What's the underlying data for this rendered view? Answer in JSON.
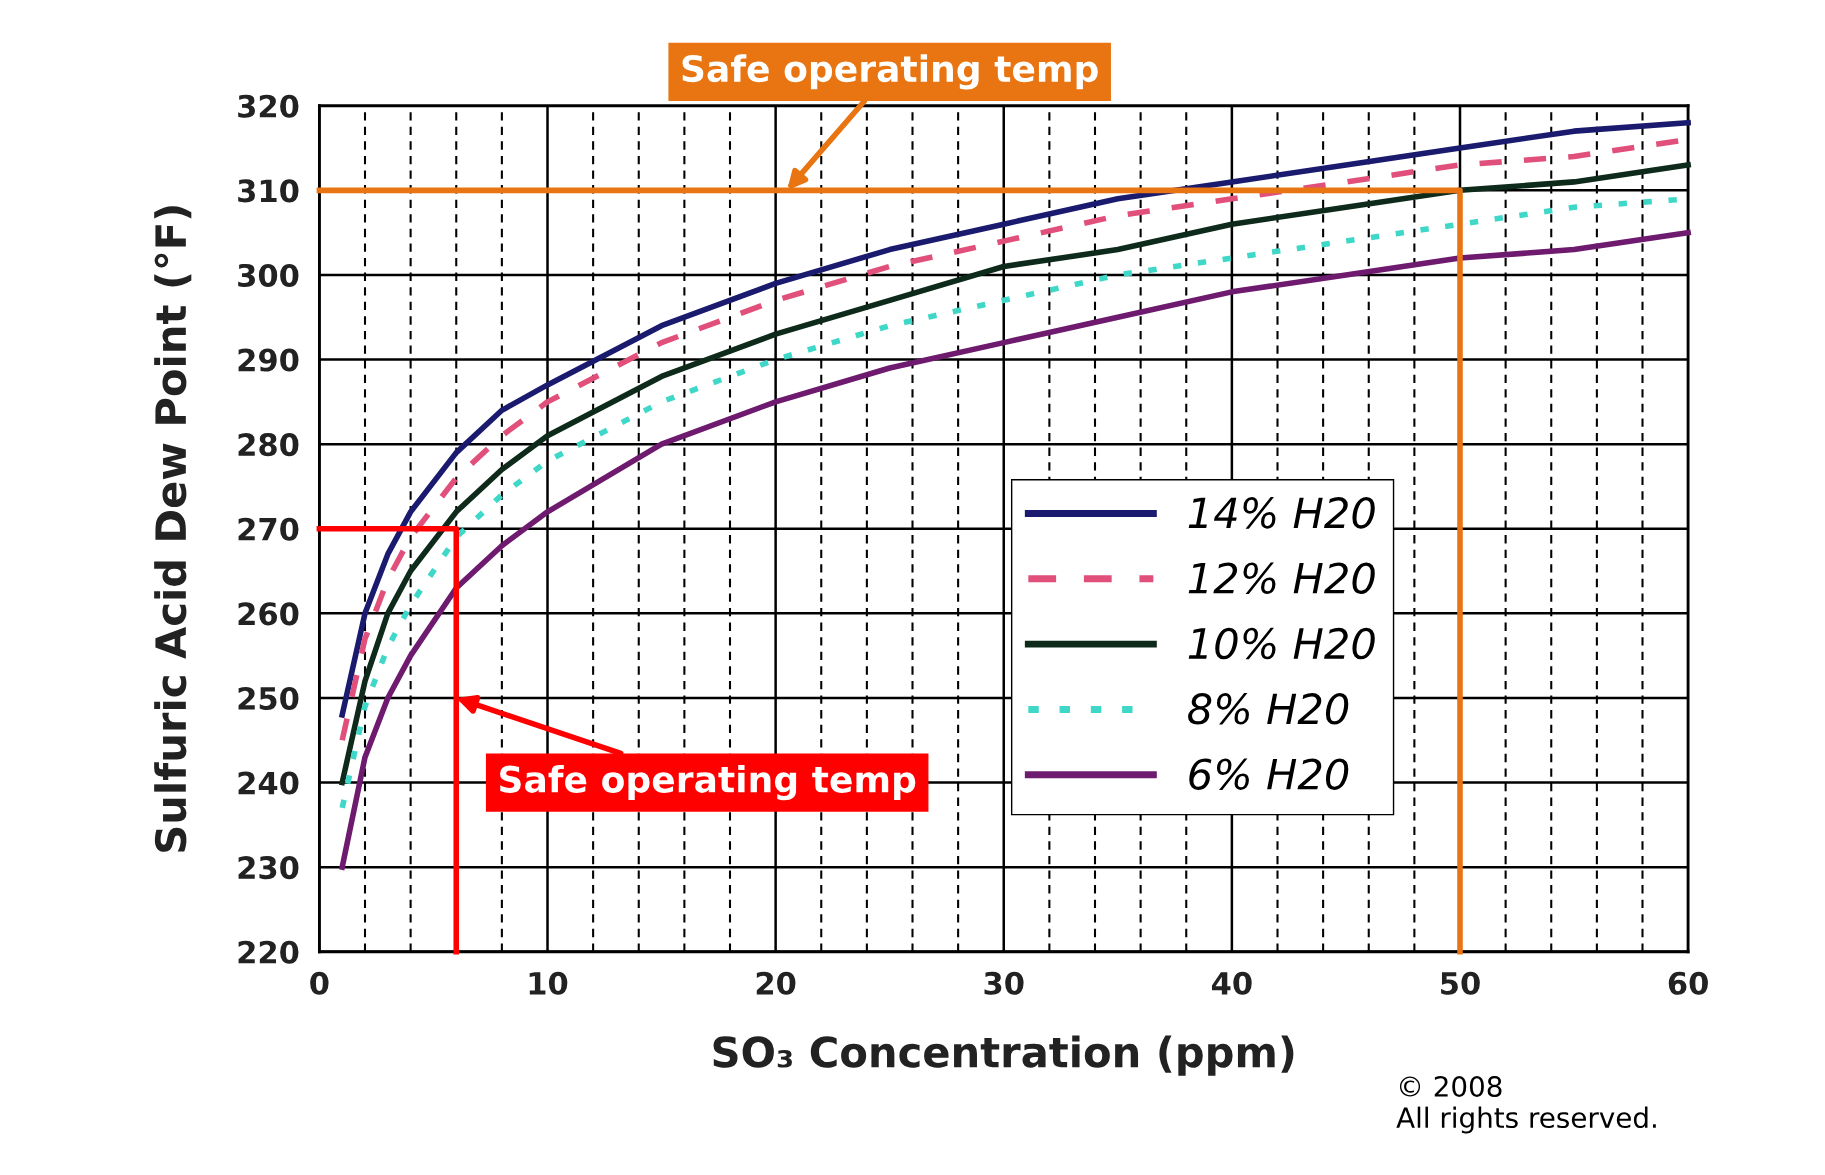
{
  "chart_data": {
    "type": "line",
    "xlabel": "SO₃ Concentration (ppm)",
    "ylabel": "Sulfuric Acid Dew Point (°F)",
    "x": [
      1,
      2,
      3,
      4,
      6,
      8,
      10,
      15,
      20,
      25,
      30,
      35,
      40,
      45,
      50,
      55,
      60
    ],
    "series": [
      {
        "name": "14% H20",
        "color": "#1a1a6e",
        "line_style": "solid",
        "values": [
          248,
          260,
          267,
          272,
          279,
          284,
          287,
          294,
          299,
          303,
          306,
          309,
          311,
          313,
          315,
          317,
          318
        ]
      },
      {
        "name": "12% H20",
        "color": "#e0507a",
        "line_style": "dashed",
        "values": [
          245,
          257,
          264,
          269,
          276,
          281,
          285,
          292,
          297,
          301,
          304,
          307,
          309,
          311,
          313,
          314,
          316
        ]
      },
      {
        "name": "10% H20",
        "color": "#0d2a1a",
        "line_style": "solid",
        "values": [
          240,
          252,
          260,
          265,
          272,
          277,
          281,
          288,
          293,
          297,
          301,
          303,
          306,
          308,
          310,
          311,
          313
        ]
      },
      {
        "name": "8% H20",
        "color": "#3fd8c8",
        "line_style": "dotted",
        "values": [
          237,
          249,
          256,
          261,
          269,
          274,
          278,
          285,
          290,
          294,
          297,
          300,
          302,
          304,
          306,
          308,
          309
        ]
      },
      {
        "name": "6% H20",
        "color": "#6e1a6e",
        "line_style": "solid",
        "values": [
          230,
          243,
          250,
          255,
          263,
          268,
          272,
          280,
          285,
          289,
          292,
          295,
          298,
          300,
          302,
          303,
          305
        ]
      },
      {
        "color": "#ff0000",
        "line_style": "solid",
        "x": [
          0,
          6,
          6
        ],
        "values": [
          270,
          270,
          220
        ]
      },
      {
        "color": "#e87511",
        "line_style": "solid",
        "x": [
          0,
          50,
          50
        ],
        "values": [
          310,
          310,
          220
        ]
      }
    ],
    "xlim": [
      0,
      60
    ],
    "ylim": [
      220,
      320
    ],
    "xticks": [
      0,
      {
        "value": 2,
        "label": null
      },
      {
        "value": 4,
        "label": null
      },
      {
        "value": 6,
        "label": null
      },
      {
        "value": 8,
        "label": null
      },
      10,
      {
        "value": 12,
        "label": null
      },
      {
        "value": 14,
        "label": null
      },
      {
        "value": 16,
        "label": null
      },
      {
        "value": 18,
        "label": null
      },
      20,
      {
        "value": 22,
        "label": null
      },
      {
        "value": 24,
        "label": null
      },
      {
        "value": 26,
        "label": null
      },
      {
        "value": 28,
        "label": null
      },
      30,
      {
        "value": 32,
        "label": null
      },
      {
        "value": 34,
        "label": null
      },
      {
        "value": 36,
        "label": null
      },
      {
        "value": 38,
        "label": null
      },
      40,
      {
        "value": 42,
        "label": null
      },
      {
        "value": 44,
        "label": null
      },
      {
        "value": 46,
        "label": null
      },
      {
        "value": 48,
        "label": null
      },
      50,
      {
        "value": 52,
        "label": null
      },
      {
        "value": 54,
        "label": null
      },
      {
        "value": 56,
        "label": null
      },
      {
        "value": 58,
        "label": null
      },
      60
    ],
    "yticks": [
      220,
      230,
      240,
      250,
      260,
      270,
      280,
      290,
      300,
      310,
      320
    ],
    "grid": true,
    "legend": "right",
    "annotations": [
      {
        "text": "Safe operating temp",
        "x": 6,
        "y": 250
      },
      {
        "text": "Safe operating temp",
        "x": 20.5,
        "y": 310
      },
      "© 2008\nAll rights reserved."
    ]
  }
}
